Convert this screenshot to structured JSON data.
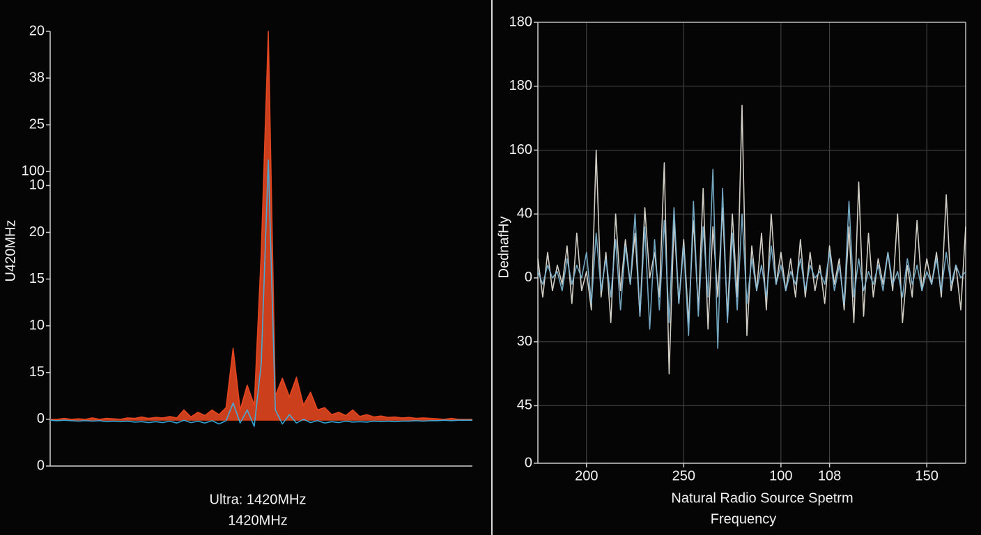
{
  "chart_data": [
    {
      "type": "line",
      "y_label": "U420MHz",
      "x_label": [
        "Ultra: 1420MHz",
        "1420MHz"
      ],
      "grid": false,
      "ylim": [
        0,
        9.3
      ],
      "yticks": [
        0,
        {
          "value": 1,
          "label": "0"
        },
        {
          "value": 2,
          "label": "15"
        },
        {
          "value": 3,
          "label": "10"
        },
        {
          "value": 4,
          "label": "15"
        },
        {
          "value": 5,
          "label": "20"
        },
        {
          "value": 6,
          "label": "10"
        },
        {
          "value": 6.3,
          "label": "100"
        },
        {
          "value": 7.3,
          "label": "25"
        },
        {
          "value": 8.3,
          "label": "38"
        },
        {
          "value": 9.3,
          "label": "20"
        }
      ],
      "categories": [
        null,
        null,
        null,
        null,
        null,
        null,
        null,
        null,
        null,
        null,
        null,
        null,
        null,
        null,
        null,
        null,
        null,
        null,
        null,
        null,
        null,
        null,
        null,
        null,
        null,
        null,
        null,
        null,
        null,
        null,
        null,
        null,
        null,
        null,
        null,
        null,
        null,
        null,
        null,
        null,
        null,
        null,
        null,
        null,
        null,
        null,
        null,
        null,
        null,
        null,
        null,
        null,
        null,
        null,
        null,
        null,
        null,
        null,
        null,
        null,
        null
      ],
      "series": [
        {
          "color": "#f04a22",
          "fill": true,
          "values": [
            1.0,
            1.0,
            1.02,
            1.0,
            1.01,
            1.0,
            1.03,
            1.0,
            1.02,
            1.01,
            1.0,
            1.03,
            1.02,
            1.05,
            1.02,
            1.04,
            1.03,
            1.06,
            1.03,
            1.2,
            1.05,
            1.15,
            1.08,
            1.2,
            1.1,
            1.25,
            2.52,
            1.2,
            1.73,
            1.3,
            4.58,
            9.3,
            1.5,
            1.88,
            1.48,
            1.9,
            1.3,
            1.58,
            1.2,
            1.25,
            1.1,
            1.15,
            1.08,
            1.2,
            1.06,
            1.1,
            1.05,
            1.07,
            1.04,
            1.05,
            1.03,
            1.04,
            1.02,
            1.03,
            1.02,
            1.01,
            1.0,
            1.02,
            1.0,
            1.0,
            1.0
          ]
        },
        {
          "color": "#3ab4e8",
          "fill": false,
          "values": [
            0.98,
            0.97,
            0.98,
            0.97,
            0.96,
            0.97,
            0.96,
            0.97,
            0.95,
            0.96,
            0.95,
            0.96,
            0.94,
            0.95,
            0.93,
            0.95,
            0.93,
            0.96,
            0.92,
            0.98,
            0.93,
            0.96,
            0.92,
            0.97,
            0.9,
            0.97,
            1.35,
            0.92,
            1.2,
            0.85,
            2.2,
            6.55,
            1.2,
            0.9,
            1.1,
            0.92,
            1.0,
            0.93,
            0.97,
            0.92,
            0.95,
            0.93,
            0.96,
            0.94,
            0.95,
            0.94,
            0.96,
            0.95,
            0.96,
            0.95,
            0.96,
            0.96,
            0.97,
            0.96,
            0.97,
            0.97,
            0.98,
            0.97,
            0.98,
            0.98,
            0.98
          ]
        }
      ]
    },
    {
      "type": "line",
      "y_label": "DednafHy",
      "x_label": [
        "Natural Radio Source Spetrm",
        "Frequency"
      ],
      "grid": true,
      "xlim": [
        0,
        8.8
      ],
      "ylim": [
        0,
        6.9
      ],
      "xticks": [
        {
          "value": 1,
          "label": "200"
        },
        {
          "value": 3,
          "label": "250"
        },
        {
          "value": 5,
          "label": "100"
        },
        {
          "value": 6,
          "label": "108"
        },
        {
          "value": 8,
          "label": "150"
        }
      ],
      "yticks": [
        0,
        {
          "value": 0.9,
          "label": "45"
        },
        {
          "value": 1.9,
          "label": "30"
        },
        {
          "value": 2.9,
          "label": "0"
        },
        {
          "value": 3.9,
          "label": "40"
        },
        {
          "value": 4.9,
          "label": "160"
        },
        {
          "value": 5.9,
          "label": "180"
        },
        {
          "value": 6.9,
          "label": "180"
        }
      ],
      "x": [
        0,
        0.1,
        0.2,
        0.3,
        0.4,
        0.5,
        0.6,
        0.7,
        0.8,
        0.9,
        1,
        1.1,
        1.2,
        1.3,
        1.4,
        1.5,
        1.6,
        1.7,
        1.8,
        1.9,
        2,
        2.1,
        2.2,
        2.3,
        2.4,
        2.5,
        2.6,
        2.7,
        2.8,
        2.9,
        3,
        3.1,
        3.2,
        3.3,
        3.4,
        3.5,
        3.6,
        3.7,
        3.8,
        3.9,
        4,
        4.1,
        4.2,
        4.3,
        4.4,
        4.5,
        4.6,
        4.7,
        4.8,
        4.9,
        5,
        5.1,
        5.2,
        5.3,
        5.4,
        5.5,
        5.6,
        5.7,
        5.8,
        5.9,
        6,
        6.1,
        6.2,
        6.3,
        6.4,
        6.5,
        6.6,
        6.7,
        6.8,
        6.9,
        7,
        7.1,
        7.2,
        7.3,
        7.4,
        7.5,
        7.6,
        7.7,
        7.8,
        7.9,
        8,
        8.1,
        8.2,
        8.3,
        8.4,
        8.5,
        8.6,
        8.7,
        8.8
      ],
      "series": [
        {
          "color": "#e8e4dc",
          "values": [
            3.2,
            2.6,
            3.3,
            2.7,
            3.1,
            2.8,
            3.4,
            2.5,
            3.6,
            2.7,
            3.0,
            2.4,
            4.9,
            2.6,
            3.3,
            2.2,
            3.9,
            2.7,
            3.5,
            2.8,
            3.6,
            2.3,
            4.0,
            2.9,
            3.3,
            2.6,
            4.7,
            1.4,
            3.8,
            2.5,
            3.5,
            2.2,
            3.8,
            2.4,
            4.3,
            2.1,
            3.7,
            2.6,
            4.0,
            2.3,
            3.9,
            2.6,
            5.6,
            2.0,
            3.4,
            2.7,
            3.6,
            2.4,
            3.9,
            2.8,
            3.3,
            2.7,
            3.2,
            2.6,
            3.5,
            2.6,
            3.3,
            2.7,
            3.1,
            2.5,
            3.4,
            2.8,
            3.2,
            2.4,
            3.7,
            2.2,
            4.4,
            2.3,
            3.6,
            2.6,
            3.2,
            2.8,
            3.3,
            2.7,
            3.9,
            2.2,
            3.1,
            2.6,
            3.8,
            2.7,
            3.2,
            2.8,
            3.3,
            2.6,
            4.2,
            2.7,
            3.1,
            2.4,
            3.7
          ]
        },
        {
          "color": "#7fb8d6",
          "values": [
            3.0,
            2.8,
            3.1,
            2.9,
            3.0,
            2.7,
            3.2,
            2.8,
            3.1,
            2.9,
            3.3,
            2.5,
            3.6,
            2.7,
            3.2,
            2.6,
            3.5,
            2.4,
            3.4,
            2.8,
            3.9,
            2.3,
            3.7,
            2.1,
            3.5,
            2.4,
            3.8,
            2.2,
            4.0,
            2.5,
            3.4,
            2.0,
            4.1,
            2.3,
            3.7,
            2.6,
            4.6,
            1.8,
            4.3,
            2.2,
            3.6,
            2.4,
            3.9,
            2.5,
            3.2,
            2.7,
            3.1,
            2.6,
            3.4,
            2.8,
            3.1,
            2.7,
            3.0,
            2.8,
            3.2,
            2.7,
            3.1,
            2.9,
            3.0,
            2.8,
            3.3,
            2.7,
            3.1,
            2.5,
            4.1,
            2.6,
            3.2,
            2.7,
            3.0,
            2.8,
            3.1,
            2.7,
            3.3,
            2.8,
            3.0,
            2.6,
            3.2,
            2.8,
            3.1,
            2.7,
            3.0,
            2.8,
            3.2,
            2.7,
            3.3,
            2.8,
            3.1,
            2.9,
            3.0
          ]
        }
      ]
    }
  ]
}
